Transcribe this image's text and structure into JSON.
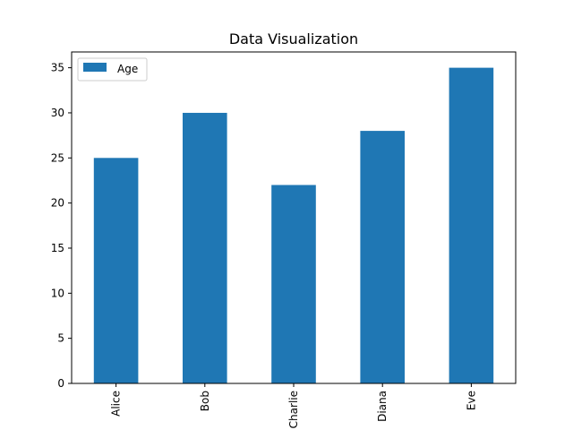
{
  "chart_data": {
    "type": "bar",
    "title": "Data Visualization",
    "xlabel": "",
    "ylabel": "",
    "categories": [
      "Alice",
      "Bob",
      "Charlie",
      "Diana",
      "Eve"
    ],
    "series": [
      {
        "name": "Age",
        "values": [
          25,
          30,
          22,
          28,
          35
        ],
        "color": "#1f77b4"
      }
    ],
    "ylim": [
      0,
      36.75
    ],
    "yticks": [
      "0",
      "5",
      "10",
      "15",
      "20",
      "25",
      "30",
      "35"
    ],
    "xtick_rotation": 90,
    "grid": false,
    "legend": {
      "position": "top-left",
      "entries": [
        "Age"
      ]
    }
  }
}
